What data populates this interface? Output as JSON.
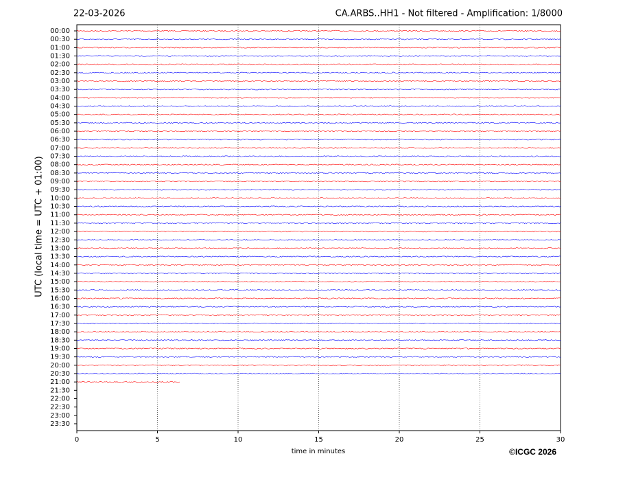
{
  "chart_data": {
    "type": "helicorder",
    "title_left": "22-03-2026",
    "title_right": "CA.ARBS..HH1 - Not filtered - Amplification: 1/8000",
    "ylabel": "UTC (local time = UTC + 01:00)",
    "xlabel": "time in minutes",
    "copyright": "©ICGC 2026",
    "xlim": [
      0,
      30
    ],
    "xticks": [
      0,
      5,
      10,
      15,
      20,
      25,
      30
    ],
    "grid": true,
    "categories": [
      "00:00",
      "00:30",
      "01:00",
      "01:30",
      "02:00",
      "02:30",
      "03:00",
      "03:30",
      "04:00",
      "04:30",
      "05:00",
      "05:30",
      "06:00",
      "06:30",
      "07:00",
      "07:30",
      "08:00",
      "08:30",
      "09:00",
      "09:30",
      "10:00",
      "10:30",
      "11:00",
      "11:30",
      "12:00",
      "12:30",
      "13:00",
      "13:30",
      "14:00",
      "14:30",
      "15:00",
      "15:30",
      "16:00",
      "16:30",
      "17:00",
      "17:30",
      "18:00",
      "18:30",
      "19:00",
      "19:30",
      "20:00",
      "20:30",
      "21:00",
      "21:30",
      "22:00",
      "22:30",
      "23:00",
      "23:30"
    ],
    "traces": [
      {
        "color": "#ff0000",
        "end": 30
      },
      {
        "color": "#0000ff",
        "end": 30
      },
      {
        "color": "#ff0000",
        "end": 30
      },
      {
        "color": "#0000ff",
        "end": 30
      },
      {
        "color": "#ff0000",
        "end": 30
      },
      {
        "color": "#0000ff",
        "end": 30
      },
      {
        "color": "#ff0000",
        "end": 30
      },
      {
        "color": "#0000ff",
        "end": 30
      },
      {
        "color": "#ff0000",
        "end": 30
      },
      {
        "color": "#0000ff",
        "end": 30
      },
      {
        "color": "#ff0000",
        "end": 30
      },
      {
        "color": "#0000ff",
        "end": 30
      },
      {
        "color": "#ff0000",
        "end": 30
      },
      {
        "color": "#0000ff",
        "end": 30
      },
      {
        "color": "#ff0000",
        "end": 30
      },
      {
        "color": "#0000ff",
        "end": 30
      },
      {
        "color": "#ff0000",
        "end": 30
      },
      {
        "color": "#0000ff",
        "end": 30
      },
      {
        "color": "#ff0000",
        "end": 30
      },
      {
        "color": "#0000ff",
        "end": 30
      },
      {
        "color": "#ff0000",
        "end": 30
      },
      {
        "color": "#0000ff",
        "end": 30
      },
      {
        "color": "#ff0000",
        "end": 30
      },
      {
        "color": "#0000ff",
        "end": 30
      },
      {
        "color": "#ff0000",
        "end": 30
      },
      {
        "color": "#0000ff",
        "end": 30
      },
      {
        "color": "#ff0000",
        "end": 30
      },
      {
        "color": "#0000ff",
        "end": 30
      },
      {
        "color": "#ff0000",
        "end": 30
      },
      {
        "color": "#0000ff",
        "end": 30
      },
      {
        "color": "#ff0000",
        "end": 30
      },
      {
        "color": "#0000ff",
        "end": 30
      },
      {
        "color": "#ff0000",
        "end": 30
      },
      {
        "color": "#0000ff",
        "end": 30
      },
      {
        "color": "#ff0000",
        "end": 30
      },
      {
        "color": "#0000ff",
        "end": 30
      },
      {
        "color": "#ff0000",
        "end": 30
      },
      {
        "color": "#0000ff",
        "end": 30
      },
      {
        "color": "#ff0000",
        "end": 30
      },
      {
        "color": "#0000ff",
        "end": 30
      },
      {
        "color": "#ff0000",
        "end": 30
      },
      {
        "color": "#0000ff",
        "end": 30
      },
      {
        "color": "#ff0000",
        "end": 6.4
      }
    ]
  }
}
